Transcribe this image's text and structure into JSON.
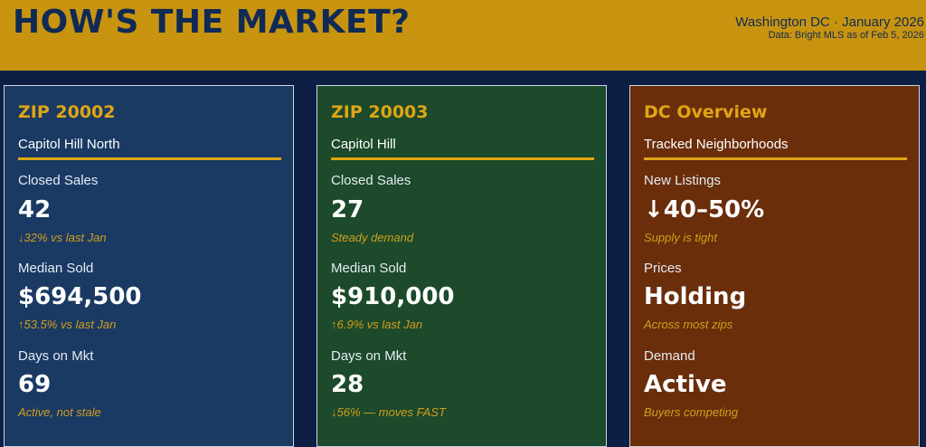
{
  "header": {
    "title": "HOW'S THE MARKET?",
    "location_date": "Washington DC · January 2026",
    "source": "Data: Bright MLS as of Feb 5, 2026"
  },
  "colors": {
    "header_bg": "#c8940f",
    "title_color": "#102a55",
    "page_bg": "#0e1f45",
    "accent": "#e0a514",
    "card1_bg": "#1a3a63",
    "card2_bg": "#1c4a2b",
    "card3_bg": "#6a2e0b"
  },
  "cards": [
    {
      "title": "ZIP 20002",
      "subtitle": "Capitol Hill North",
      "metrics": [
        {
          "label": "Closed Sales",
          "value": "42",
          "note": "↓32% vs last Jan"
        },
        {
          "label": "Median Sold",
          "value": "$694,500",
          "note": "↑53.5% vs last Jan"
        },
        {
          "label": "Days on Mkt",
          "value": "69",
          "note": "Active, not stale"
        }
      ]
    },
    {
      "title": "ZIP 20003",
      "subtitle": "Capitol Hill",
      "metrics": [
        {
          "label": "Closed Sales",
          "value": "27",
          "note": "Steady demand"
        },
        {
          "label": "Median Sold",
          "value": "$910,000",
          "note": "↑6.9% vs last Jan"
        },
        {
          "label": "Days on Mkt",
          "value": "28",
          "note": "↓56% — moves FAST"
        }
      ]
    },
    {
      "title": "DC Overview",
      "subtitle": "Tracked Neighborhoods",
      "metrics": [
        {
          "label": "New Listings",
          "value": "↓40–50%",
          "note": "Supply is tight"
        },
        {
          "label": "Prices",
          "value": "Holding",
          "note": "Across most zips"
        },
        {
          "label": "Demand",
          "value": "Active",
          "note": "Buyers competing"
        }
      ]
    }
  ]
}
